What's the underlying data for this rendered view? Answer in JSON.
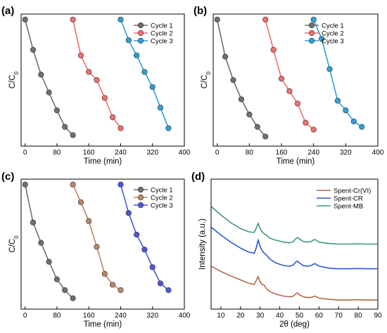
{
  "chart_data": [
    {
      "type": "scatter",
      "panel_label": "(a)",
      "xlabel": "Time (min)",
      "ylabel": "C/C",
      "ylabel_sub": "0",
      "xlim": [
        -10,
        400
      ],
      "ylim": [
        0.08,
        1.04
      ],
      "xticks": [
        0,
        80,
        160,
        240,
        320,
        400
      ],
      "show_yticks": false,
      "legend_position": "top-right",
      "series": [
        {
          "name": "Cycle 1",
          "color": "#6f6f6f",
          "x": [
            0,
            20,
            40,
            60,
            80,
            100,
            120
          ],
          "y": [
            1.0,
            0.78,
            0.6,
            0.47,
            0.34,
            0.22,
            0.16
          ]
        },
        {
          "name": "Cycle 2",
          "color": "#ee6f6f",
          "x": [
            120,
            140,
            160,
            180,
            200,
            220,
            240
          ],
          "y": [
            1.0,
            0.74,
            0.62,
            0.56,
            0.43,
            0.29,
            0.21
          ]
        },
        {
          "name": "Cycle 3",
          "color": "#2f9fd8",
          "x": [
            240,
            260,
            280,
            300,
            320,
            340,
            360
          ],
          "y": [
            1.0,
            0.85,
            0.74,
            0.62,
            0.51,
            0.36,
            0.21
          ]
        }
      ]
    },
    {
      "type": "scatter",
      "panel_label": "(b)",
      "xlabel": "Time (min)",
      "ylabel": "C/C",
      "ylabel_sub": "0",
      "xlim": [
        -10,
        400
      ],
      "ylim": [
        0.08,
        1.04
      ],
      "xticks": [
        0,
        80,
        160,
        240,
        320,
        400
      ],
      "show_yticks": false,
      "legend_position": "top-right",
      "series": [
        {
          "name": "Cycle 1",
          "color": "#6f6f6f",
          "x": [
            0,
            20,
            40,
            60,
            80,
            100,
            120
          ],
          "y": [
            1.0,
            0.73,
            0.56,
            0.42,
            0.31,
            0.22,
            0.15
          ]
        },
        {
          "name": "Cycle 2",
          "color": "#ee6f6f",
          "x": [
            120,
            140,
            160,
            180,
            200,
            220,
            240
          ],
          "y": [
            1.0,
            0.78,
            0.57,
            0.48,
            0.39,
            0.25,
            0.2
          ]
        },
        {
          "name": "Cycle 3",
          "color": "#2f9fd8",
          "x": [
            240,
            260,
            280,
            300,
            320,
            340,
            360
          ],
          "y": [
            1.0,
            0.86,
            0.64,
            0.41,
            0.34,
            0.26,
            0.22
          ]
        }
      ]
    },
    {
      "type": "scatter",
      "panel_label": "(c)",
      "xlabel": "Time (min)",
      "ylabel": "C/C",
      "ylabel_sub": "0",
      "xlim": [
        -10,
        400
      ],
      "ylim": [
        0.08,
        1.04
      ],
      "xticks": [
        0,
        80,
        160,
        240,
        320,
        400
      ],
      "show_yticks": false,
      "legend_position": "top-right",
      "series": [
        {
          "name": "Cycle 1",
          "color": "#6f6f6f",
          "x": [
            0,
            20,
            40,
            60,
            80,
            100,
            120
          ],
          "y": [
            1.0,
            0.72,
            0.57,
            0.43,
            0.3,
            0.22,
            0.16
          ]
        },
        {
          "name": "Cycle 2",
          "color": "#b8866a",
          "x": [
            120,
            140,
            160,
            180,
            200,
            220,
            240
          ],
          "y": [
            1.0,
            0.87,
            0.73,
            0.54,
            0.34,
            0.26,
            0.22
          ]
        },
        {
          "name": "Cycle 3",
          "color": "#4a57d8",
          "x": [
            240,
            260,
            280,
            300,
            320,
            340,
            360
          ],
          "y": [
            1.0,
            0.79,
            0.63,
            0.52,
            0.39,
            0.27,
            0.22
          ]
        }
      ]
    },
    {
      "type": "line",
      "panel_label": "(d)",
      "xlabel": "2θ (deg)",
      "ylabel": "Intensity (a.u.)",
      "xlim": [
        5,
        90
      ],
      "ylim": [
        0,
        10
      ],
      "xticks": [
        10,
        20,
        30,
        40,
        50,
        60,
        70,
        80,
        90
      ],
      "show_yticks": false,
      "legend_position": "top-right",
      "series": [
        {
          "name": "Spent-Cr(VI)",
          "color": "#b06a4c",
          "x": [
            5,
            10,
            15,
            20,
            24,
            27,
            29,
            30,
            31,
            32,
            33,
            35,
            38,
            42,
            45,
            47,
            48,
            49,
            50,
            52,
            54,
            56,
            57,
            58,
            60,
            65,
            70,
            75,
            80,
            85,
            90
          ],
          "y": [
            3.3,
            2.9,
            2.55,
            2.25,
            2.0,
            1.9,
            2.5,
            2.1,
            1.9,
            1.85,
            1.6,
            1.35,
            1.15,
            1.0,
            0.95,
            1.0,
            1.15,
            1.25,
            1.1,
            0.95,
            0.9,
            0.9,
            0.95,
            1.0,
            0.85,
            0.75,
            0.7,
            0.7,
            0.72,
            0.7,
            0.7
          ]
        },
        {
          "name": "Spent-CR",
          "color": "#2f56d0",
          "x": [
            5,
            10,
            15,
            20,
            24,
            27,
            28,
            29,
            30,
            31,
            32,
            33,
            35,
            38,
            42,
            45,
            47,
            48,
            49,
            50,
            52,
            54,
            56,
            57,
            58,
            60,
            65,
            70,
            75,
            80,
            85,
            90
          ],
          "y": [
            6.3,
            5.7,
            5.15,
            4.7,
            4.4,
            4.3,
            4.7,
            5.3,
            4.8,
            4.5,
            4.3,
            4.2,
            3.85,
            3.55,
            3.35,
            3.3,
            3.4,
            3.6,
            3.7,
            3.55,
            3.35,
            3.3,
            3.35,
            3.45,
            3.5,
            3.3,
            3.15,
            3.1,
            3.1,
            3.12,
            3.1,
            3.1
          ]
        },
        {
          "name": "Spent-MB",
          "color": "#3a9a78",
          "x": [
            5,
            10,
            15,
            20,
            24,
            27,
            28,
            29,
            30,
            31,
            32,
            33,
            35,
            38,
            42,
            45,
            47,
            48,
            49,
            50,
            52,
            54,
            56,
            57,
            58,
            60,
            65,
            70,
            75,
            80,
            85,
            90
          ],
          "y": [
            7.9,
            7.25,
            6.65,
            6.2,
            5.95,
            5.9,
            6.2,
            6.6,
            6.2,
            5.95,
            5.8,
            5.7,
            5.45,
            5.3,
            5.15,
            5.1,
            5.2,
            5.4,
            5.5,
            5.4,
            5.2,
            5.15,
            5.2,
            5.3,
            5.35,
            5.15,
            5.05,
            5.0,
            5.0,
            5.02,
            5.0,
            5.0
          ]
        }
      ]
    }
  ]
}
